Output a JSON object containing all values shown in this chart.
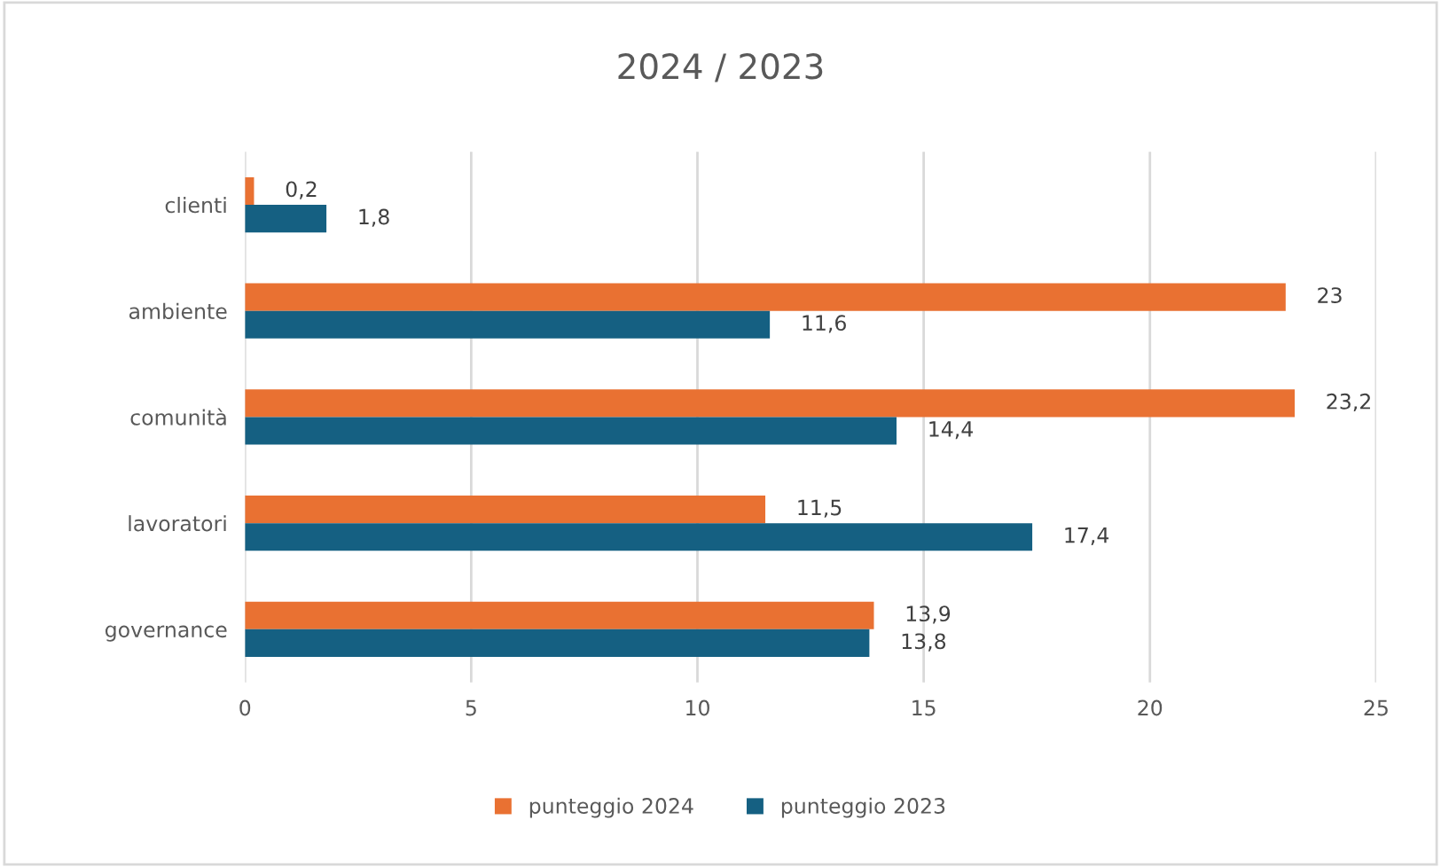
{
  "chart_data": {
    "type": "bar",
    "orientation": "horizontal",
    "title": "2024 / 2023",
    "categories": [
      "clienti",
      "ambiente",
      "comunità",
      "lavoratori",
      "governance"
    ],
    "series": [
      {
        "name": "punteggio 2024",
        "color": "#e97132",
        "values": [
          0.2,
          23,
          23.2,
          11.5,
          13.9
        ],
        "value_labels": [
          "0,2",
          "23",
          "23,2",
          "11,5",
          "13,9"
        ]
      },
      {
        "name": "punteggio 2023",
        "color": "#156082",
        "values": [
          1.8,
          11.6,
          14.4,
          17.4,
          13.8
        ],
        "value_labels": [
          "1,8",
          "11,6",
          "14,4",
          "17,4",
          "13,8"
        ]
      }
    ],
    "xlim": [
      0,
      25
    ],
    "xticks": [
      0,
      5,
      10,
      15,
      20,
      25
    ],
    "grid": "x",
    "legend": "bottom"
  }
}
